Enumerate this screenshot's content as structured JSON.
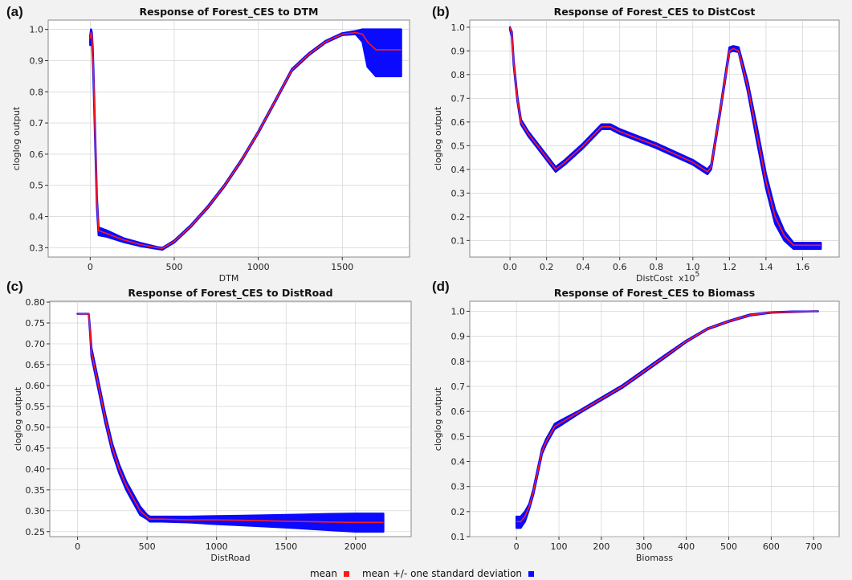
{
  "colors": {
    "mean": "#ff1a1a",
    "band": "#0a0aff",
    "plot_bg": "#ffffff",
    "grid": "#cccccc"
  },
  "legend": {
    "mean": "mean",
    "band": "mean +/- one standard deviation"
  },
  "chart_data": [
    {
      "id": "a",
      "label": "(a)",
      "type": "line",
      "title": "Response of Forest_CES to DTM",
      "xlabel": "DTM",
      "ylabel": "cloglog output",
      "x_multiplier": "",
      "xlim": [
        -250,
        1900
      ],
      "ylim": [
        0.27,
        1.03
      ],
      "xticks": [
        0,
        500,
        1000,
        1500
      ],
      "xtick_labels": [
        "0",
        "500",
        "1000",
        "1500"
      ],
      "yticks": [
        0.3,
        0.4,
        0.5,
        0.6,
        0.7,
        0.8,
        0.9,
        1.0
      ],
      "ytick_labels": [
        "0.3",
        "0.4",
        "0.5",
        "0.6",
        "0.7",
        "0.8",
        "0.9",
        "1.0"
      ],
      "grid": true,
      "series": [
        {
          "x": [
            0,
            5,
            10,
            15,
            20,
            40,
            50,
            100,
            200,
            300,
            400,
            430,
            500,
            600,
            700,
            800,
            900,
            1000,
            1100,
            1200,
            1300,
            1400,
            1500,
            1580,
            1620,
            1650,
            1700,
            1850
          ],
          "mean": [
            0.97,
            0.99,
            0.98,
            0.93,
            0.85,
            0.45,
            0.355,
            0.345,
            0.325,
            0.31,
            0.3,
            0.298,
            0.32,
            0.37,
            0.43,
            0.5,
            0.58,
            0.67,
            0.77,
            0.87,
            0.92,
            0.96,
            0.985,
            0.99,
            0.985,
            0.96,
            0.935,
            0.935
          ],
          "upper": [
            0.98,
            1.0,
            0.99,
            0.94,
            0.86,
            0.46,
            0.365,
            0.355,
            0.33,
            0.315,
            0.302,
            0.3,
            0.323,
            0.373,
            0.433,
            0.503,
            0.583,
            0.673,
            0.773,
            0.873,
            0.923,
            0.963,
            0.988,
            0.995,
            1.0,
            1.0,
            1.0,
            1.0
          ],
          "lower": [
            0.95,
            0.97,
            0.96,
            0.91,
            0.83,
            0.43,
            0.34,
            0.335,
            0.318,
            0.305,
            0.296,
            0.294,
            0.317,
            0.367,
            0.427,
            0.497,
            0.577,
            0.667,
            0.767,
            0.867,
            0.917,
            0.957,
            0.982,
            0.985,
            0.96,
            0.88,
            0.85,
            0.85
          ]
        }
      ]
    },
    {
      "id": "b",
      "label": "(b)",
      "type": "line",
      "title": "Response of Forest_CES to DistCost",
      "xlabel": "DistCost",
      "ylabel": "cloglog output",
      "x_multiplier": "x10^5",
      "xlim": [
        -0.22,
        1.8
      ],
      "ylim": [
        0.03,
        1.03
      ],
      "xticks": [
        0.0,
        0.2,
        0.4,
        0.6,
        0.8,
        1.0,
        1.2,
        1.4,
        1.6
      ],
      "xtick_labels": [
        "0.0",
        "0.2",
        "0.4",
        "0.6",
        "0.8",
        "1.0",
        "1.2",
        "1.4",
        "1.6"
      ],
      "yticks": [
        0.1,
        0.2,
        0.3,
        0.4,
        0.5,
        0.6,
        0.7,
        0.8,
        0.9,
        1.0
      ],
      "ytick_labels": [
        "0.1",
        "0.2",
        "0.3",
        "0.4",
        "0.5",
        "0.6",
        "0.7",
        "0.8",
        "0.9",
        "1.0"
      ],
      "grid": true,
      "series": [
        {
          "x": [
            0.0,
            0.01,
            0.02,
            0.04,
            0.06,
            0.1,
            0.15,
            0.2,
            0.25,
            0.3,
            0.4,
            0.5,
            0.55,
            0.6,
            0.8,
            1.0,
            1.08,
            1.1,
            1.15,
            1.2,
            1.22,
            1.25,
            1.3,
            1.35,
            1.4,
            1.45,
            1.5,
            1.55,
            1.6,
            1.7
          ],
          "mean": [
            1.0,
            0.97,
            0.85,
            0.7,
            0.6,
            0.55,
            0.5,
            0.45,
            0.4,
            0.43,
            0.5,
            0.58,
            0.58,
            0.56,
            0.5,
            0.43,
            0.39,
            0.41,
            0.65,
            0.9,
            0.91,
            0.9,
            0.75,
            0.55,
            0.35,
            0.2,
            0.12,
            0.08,
            0.08,
            0.08
          ],
          "upper": [
            1.0,
            0.98,
            0.86,
            0.71,
            0.61,
            0.56,
            0.51,
            0.46,
            0.41,
            0.44,
            0.51,
            0.59,
            0.59,
            0.57,
            0.51,
            0.44,
            0.4,
            0.42,
            0.66,
            0.915,
            0.92,
            0.915,
            0.77,
            0.58,
            0.38,
            0.23,
            0.14,
            0.09,
            0.09,
            0.09
          ],
          "lower": [
            0.99,
            0.96,
            0.84,
            0.69,
            0.59,
            0.54,
            0.49,
            0.44,
            0.39,
            0.42,
            0.49,
            0.57,
            0.57,
            0.55,
            0.49,
            0.42,
            0.38,
            0.4,
            0.64,
            0.895,
            0.9,
            0.895,
            0.73,
            0.52,
            0.32,
            0.17,
            0.1,
            0.065,
            0.065,
            0.065
          ]
        }
      ]
    },
    {
      "id": "c",
      "label": "(c)",
      "type": "line",
      "title": "Response of Forest_CES to DistRoad",
      "xlabel": "DistRoad",
      "ylabel": "cloglog output",
      "x_multiplier": "",
      "xlim": [
        -200,
        2400
      ],
      "ylim": [
        0.238,
        0.802
      ],
      "xticks": [
        0,
        500,
        1000,
        1500,
        2000
      ],
      "xtick_labels": [
        "0",
        "500",
        "1000",
        "1500",
        "2000"
      ],
      "yticks": [
        0.25,
        0.3,
        0.35,
        0.4,
        0.45,
        0.5,
        0.55,
        0.6,
        0.65,
        0.7,
        0.75,
        0.8
      ],
      "ytick_labels": [
        "0.25",
        "0.30",
        "0.35",
        "0.40",
        "0.45",
        "0.50",
        "0.55",
        "0.60",
        "0.65",
        "0.70",
        "0.75",
        "0.80"
      ],
      "grid": true,
      "series": [
        {
          "x": [
            0,
            80,
            90,
            100,
            150,
            200,
            250,
            300,
            350,
            400,
            450,
            500,
            520,
            600,
            800,
            1000,
            1200,
            1500,
            1800,
            2000,
            2200
          ],
          "mean": [
            0.772,
            0.772,
            0.73,
            0.68,
            0.6,
            0.52,
            0.45,
            0.4,
            0.36,
            0.33,
            0.3,
            0.285,
            0.28,
            0.28,
            0.278,
            0.278,
            0.277,
            0.275,
            0.273,
            0.272,
            0.272
          ],
          "upper": [
            0.772,
            0.772,
            0.735,
            0.69,
            0.61,
            0.53,
            0.46,
            0.41,
            0.37,
            0.34,
            0.31,
            0.29,
            0.286,
            0.286,
            0.286,
            0.287,
            0.288,
            0.29,
            0.292,
            0.293,
            0.293
          ],
          "lower": [
            0.772,
            0.772,
            0.725,
            0.67,
            0.59,
            0.51,
            0.44,
            0.39,
            0.35,
            0.32,
            0.29,
            0.28,
            0.274,
            0.274,
            0.272,
            0.268,
            0.265,
            0.26,
            0.254,
            0.25,
            0.25
          ]
        }
      ]
    },
    {
      "id": "d",
      "label": "(d)",
      "type": "line",
      "title": "Response of Forest_CES to Biomass",
      "xlabel": "Biomass",
      "ylabel": "cloglog output",
      "x_multiplier": "",
      "xlim": [
        -110,
        760
      ],
      "ylim": [
        0.1,
        1.04
      ],
      "xticks": [
        0,
        100,
        200,
        300,
        400,
        500,
        600,
        700
      ],
      "xtick_labels": [
        "0",
        "100",
        "200",
        "300",
        "400",
        "500",
        "600",
        "700"
      ],
      "yticks": [
        0.1,
        0.2,
        0.3,
        0.4,
        0.5,
        0.6,
        0.7,
        0.8,
        0.9,
        1.0
      ],
      "ytick_labels": [
        "0.1",
        "0.2",
        "0.3",
        "0.4",
        "0.5",
        "0.6",
        "0.7",
        "0.8",
        "0.9",
        "1.0"
      ],
      "grid": true,
      "series": [
        {
          "x": [
            0,
            10,
            20,
            30,
            40,
            50,
            60,
            70,
            80,
            90,
            100,
            150,
            200,
            250,
            300,
            350,
            400,
            450,
            500,
            550,
            600,
            650,
            700,
            710
          ],
          "mean": [
            0.16,
            0.16,
            0.18,
            0.22,
            0.28,
            0.36,
            0.44,
            0.48,
            0.51,
            0.54,
            0.55,
            0.6,
            0.65,
            0.7,
            0.76,
            0.82,
            0.88,
            0.93,
            0.96,
            0.985,
            0.995,
            0.998,
            1.0,
            1.0
          ],
          "upper": [
            0.18,
            0.18,
            0.2,
            0.23,
            0.29,
            0.37,
            0.45,
            0.49,
            0.52,
            0.55,
            0.56,
            0.605,
            0.655,
            0.705,
            0.765,
            0.825,
            0.883,
            0.932,
            0.962,
            0.987,
            0.996,
            0.999,
            1.0,
            1.0
          ],
          "lower": [
            0.135,
            0.135,
            0.16,
            0.21,
            0.27,
            0.35,
            0.43,
            0.47,
            0.5,
            0.53,
            0.54,
            0.595,
            0.645,
            0.695,
            0.755,
            0.815,
            0.877,
            0.928,
            0.958,
            0.983,
            0.994,
            0.997,
            1.0,
            1.0
          ]
        }
      ]
    }
  ]
}
